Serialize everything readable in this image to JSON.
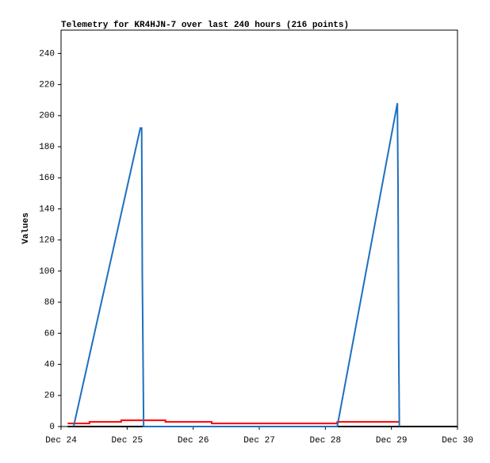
{
  "chart_data": {
    "type": "line",
    "title": "Telemetry for KR4HJN-7 over last 240 hours (216 points)",
    "ylabel": "Values",
    "xlim": [
      0,
      6
    ],
    "xticks": [
      {
        "value": 0,
        "label": "Dec 24"
      },
      {
        "value": 1,
        "label": "Dec 25"
      },
      {
        "value": 2,
        "label": "Dec 26"
      },
      {
        "value": 3,
        "label": "Dec 27"
      },
      {
        "value": 4,
        "label": "Dec 28"
      },
      {
        "value": 5,
        "label": "Dec 29"
      },
      {
        "value": 6,
        "label": "Dec 30"
      }
    ],
    "ylim": [
      0,
      255
    ],
    "yticks": [
      0,
      20,
      40,
      60,
      80,
      100,
      120,
      140,
      160,
      180,
      200,
      220,
      240
    ],
    "series": [
      {
        "color": "#000000",
        "x": [
          0.1,
          6
        ],
        "values": [
          0,
          0
        ]
      },
      {
        "color": "#ff0000",
        "x": [
          0.1,
          0.43,
          0.43,
          0.91,
          0.91,
          1.58,
          1.58,
          2.28,
          2.28,
          4.18,
          4.18,
          5.12
        ],
        "values": [
          2,
          2,
          3,
          3,
          4,
          4,
          3,
          3,
          2,
          2,
          3,
          3
        ]
      },
      {
        "color": "#1f6fbf",
        "x": [
          0.19,
          1.2,
          1.22,
          1.23,
          1.25,
          4.18,
          5.09,
          5.1,
          5.11,
          5.12
        ],
        "values": [
          0,
          192,
          192,
          97,
          0,
          0,
          208,
          156,
          52,
          0
        ]
      }
    ]
  }
}
